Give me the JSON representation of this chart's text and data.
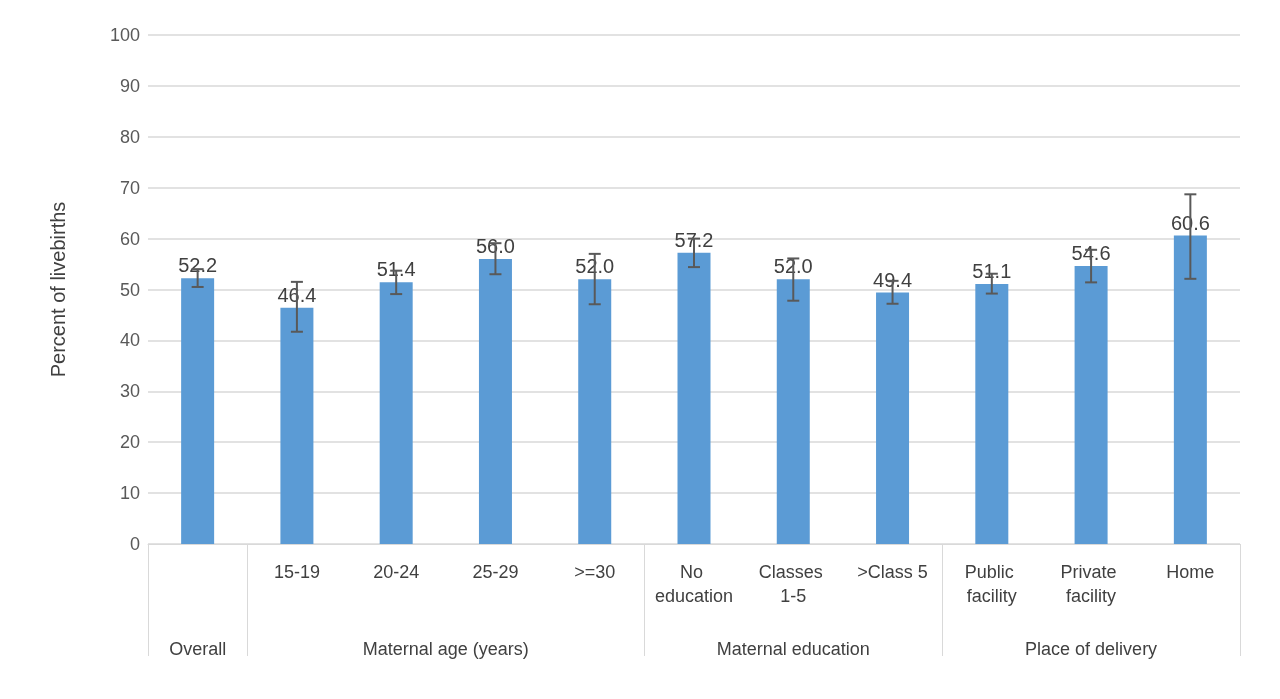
{
  "chart_data": {
    "type": "bar",
    "ylabel": "Percent of livebirths",
    "categories": [
      null,
      "15-19",
      "20-24",
      "25-29",
      ">=30",
      "No education",
      "Classes 1-5",
      ">Class 5",
      "Public facility",
      "Private facility",
      "Home"
    ],
    "values": [
      52.2,
      46.4,
      51.4,
      56.0,
      52.0,
      57.2,
      52.0,
      49.4,
      51.1,
      54.6,
      60.6
    ],
    "errors": [
      [
        50.5,
        54.0
      ],
      [
        41.7,
        51.5
      ],
      [
        49.1,
        53.7
      ],
      [
        53.0,
        59.1
      ],
      [
        47.1,
        57.0
      ],
      [
        54.4,
        60.0
      ],
      [
        47.8,
        56.1
      ],
      [
        47.2,
        51.7
      ],
      [
        49.2,
        53.1
      ],
      [
        51.4,
        57.8
      ],
      [
        52.1,
        68.7
      ]
    ],
    "color": "#5b9bd5",
    "value_labels": [
      "52.2",
      "46.4",
      "51.4",
      "56.0",
      "52.0",
      "57.2",
      "52.0",
      "49.4",
      "51.1",
      "54.6",
      "60.6"
    ],
    "ylim": [
      0,
      100
    ],
    "yticks": [
      0,
      10,
      20,
      30,
      40,
      50,
      60,
      70,
      80,
      90,
      100
    ],
    "grid": "y",
    "annotations": [
      "Overall",
      "Maternal age (years)",
      "Maternal education",
      "Place of delivery"
    ]
  }
}
